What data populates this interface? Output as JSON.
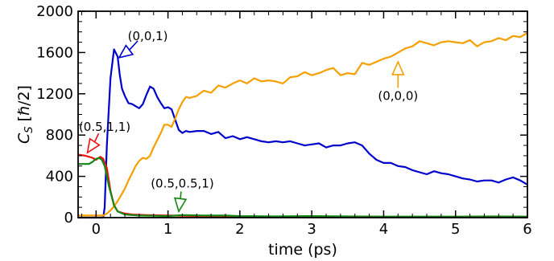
{
  "chart_data": {
    "type": "line",
    "xlabel": "time (ps)",
    "ylabel_main": "C",
    "ylabel_sub": "S",
    "ylabel_unit": " [ℏ/2]",
    "xlim": [
      -0.25,
      6.0
    ],
    "ylim": [
      0,
      2000
    ],
    "x_ticks": [
      0,
      1,
      2,
      3,
      4,
      5,
      6
    ],
    "x_tick_labels": [
      "0",
      "1",
      "2",
      "3",
      "4",
      "5",
      "6"
    ],
    "y_ticks": [
      0,
      400,
      800,
      1200,
      1600,
      2000
    ],
    "y_tick_labels": [
      "0",
      "400",
      "800",
      "1200",
      "1600",
      "2000"
    ],
    "grid": false,
    "series": [
      {
        "name": "(0,0,1)",
        "color": "#0000cc",
        "x": [
          -0.25,
          0.0,
          0.08,
          0.1,
          0.12,
          0.15,
          0.2,
          0.25,
          0.3,
          0.33,
          0.36,
          0.4,
          0.45,
          0.5,
          0.55,
          0.6,
          0.65,
          0.7,
          0.75,
          0.8,
          0.85,
          0.9,
          0.95,
          1.0,
          1.05,
          1.1,
          1.15,
          1.2,
          1.25,
          1.3,
          1.4,
          1.5,
          1.6,
          1.7,
          1.8,
          1.9,
          2.0,
          2.1,
          2.2,
          2.3,
          2.4,
          2.5,
          2.6,
          2.7,
          2.8,
          2.9,
          3.0,
          3.1,
          3.2,
          3.3,
          3.4,
          3.5,
          3.6,
          3.7,
          3.8,
          3.9,
          4.0,
          4.1,
          4.2,
          4.3,
          4.4,
          4.5,
          4.6,
          4.7,
          4.8,
          4.9,
          5.0,
          5.1,
          5.2,
          5.3,
          5.4,
          5.5,
          5.6,
          5.7,
          5.8,
          5.9,
          6.0
        ],
        "values": [
          0,
          0,
          0,
          0,
          100,
          700,
          1350,
          1630,
          1560,
          1380,
          1250,
          1180,
          1110,
          1100,
          1080,
          1060,
          1100,
          1190,
          1270,
          1250,
          1170,
          1110,
          1060,
          1070,
          1050,
          950,
          850,
          820,
          840,
          830,
          840,
          840,
          810,
          830,
          770,
          790,
          760,
          780,
          760,
          740,
          730,
          740,
          730,
          740,
          720,
          700,
          710,
          720,
          680,
          700,
          700,
          720,
          730,
          700,
          620,
          560,
          530,
          530,
          500,
          490,
          460,
          440,
          420,
          450,
          430,
          420,
          400,
          380,
          370,
          350,
          360,
          360,
          340,
          370,
          390,
          360,
          320
        ]
      },
      {
        "name": "(0,0,0)",
        "color": "#f5a000",
        "x": [
          -0.25,
          0.0,
          0.1,
          0.15,
          0.2,
          0.25,
          0.3,
          0.35,
          0.4,
          0.45,
          0.5,
          0.55,
          0.6,
          0.65,
          0.7,
          0.75,
          0.8,
          0.85,
          0.9,
          0.95,
          1.0,
          1.05,
          1.1,
          1.15,
          1.2,
          1.25,
          1.3,
          1.4,
          1.5,
          1.6,
          1.7,
          1.8,
          1.9,
          2.0,
          2.1,
          2.2,
          2.3,
          2.4,
          2.5,
          2.6,
          2.7,
          2.8,
          2.9,
          3.0,
          3.1,
          3.2,
          3.3,
          3.4,
          3.5,
          3.6,
          3.7,
          3.8,
          3.9,
          4.0,
          4.1,
          4.2,
          4.3,
          4.4,
          4.5,
          4.6,
          4.7,
          4.8,
          4.9,
          5.0,
          5.1,
          5.2,
          5.3,
          5.4,
          5.5,
          5.6,
          5.7,
          5.8,
          5.9,
          6.0
        ],
        "values": [
          20,
          20,
          20,
          40,
          70,
          110,
          160,
          220,
          280,
          360,
          430,
          500,
          550,
          580,
          570,
          600,
          680,
          750,
          820,
          900,
          900,
          880,
          960,
          1050,
          1120,
          1170,
          1160,
          1180,
          1230,
          1210,
          1280,
          1260,
          1300,
          1330,
          1300,
          1350,
          1320,
          1330,
          1320,
          1300,
          1360,
          1370,
          1410,
          1380,
          1400,
          1430,
          1450,
          1380,
          1400,
          1390,
          1500,
          1480,
          1510,
          1540,
          1560,
          1600,
          1640,
          1660,
          1710,
          1690,
          1670,
          1700,
          1710,
          1700,
          1690,
          1720,
          1660,
          1700,
          1710,
          1740,
          1720,
          1760,
          1750,
          1790
        ]
      },
      {
        "name": "(0.5,1,1)",
        "color": "#ee1111",
        "x": [
          -0.25,
          -0.15,
          -0.05,
          0.0,
          0.03,
          0.06,
          0.1,
          0.15,
          0.2,
          0.25,
          0.3,
          0.4,
          0.5,
          0.7,
          1.0,
          1.5,
          2.0,
          3.0,
          4.0,
          5.0,
          6.0
        ],
        "values": [
          610,
          600,
          580,
          560,
          575,
          590,
          570,
          480,
          260,
          120,
          60,
          40,
          30,
          25,
          20,
          15,
          12,
          10,
          8,
          8,
          8
        ]
      },
      {
        "name": "(0.5,0.5,1)",
        "color": "#118811",
        "x": [
          -0.25,
          -0.1,
          -0.05,
          0.0,
          0.04,
          0.08,
          0.12,
          0.18,
          0.25,
          0.3,
          0.4,
          0.5,
          0.6,
          0.8,
          1.0,
          1.2,
          1.5,
          1.8,
          2.0,
          2.5,
          3.0,
          3.5,
          4.0,
          4.5,
          5.0,
          5.5,
          6.0
        ],
        "values": [
          520,
          520,
          540,
          570,
          580,
          560,
          500,
          300,
          120,
          60,
          30,
          25,
          20,
          18,
          15,
          25,
          20,
          20,
          15,
          12,
          15,
          12,
          10,
          10,
          10,
          12,
          10
        ]
      }
    ],
    "annotations": [
      {
        "text": "(0,0,1)",
        "series": 0,
        "text_x": 0.72,
        "text_y": 1760,
        "arrow_x": 0.32,
        "arrow_y": 1550,
        "color": "#0000cc"
      },
      {
        "text": "(0,0,0)",
        "series": 1,
        "text_x": 4.2,
        "text_y": 1180,
        "arrow_x": 4.2,
        "arrow_y": 1510,
        "color": "#f5a000"
      },
      {
        "text": "(0.5,1,1)",
        "series": 2,
        "text_x": 0.12,
        "text_y": 880,
        "arrow_x": -0.12,
        "arrow_y": 630,
        "color": "#ee1111"
      },
      {
        "text": "(0.5,0.5,1)",
        "series": 3,
        "text_x": 1.2,
        "text_y": 330,
        "arrow_x": 1.15,
        "arrow_y": 60,
        "color": "#118811"
      }
    ]
  }
}
